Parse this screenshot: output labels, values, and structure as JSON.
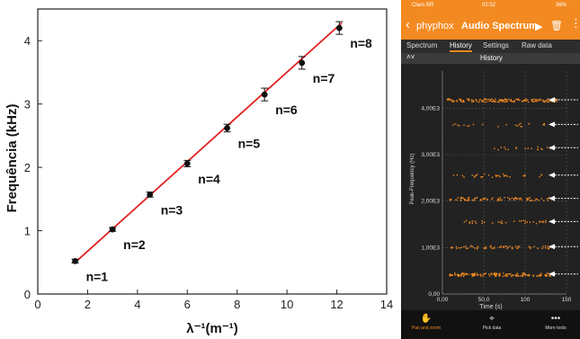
{
  "chart_data": [
    {
      "type": "scatter",
      "title": "",
      "xlabel": "λ⁻¹(m⁻¹)",
      "ylabel": "Frequência (kHz)",
      "xlim": [
        0,
        14
      ],
      "ylim": [
        0,
        4.5
      ],
      "xticks": [
        "0",
        "2",
        "4",
        "6",
        "8",
        "10",
        "12",
        "14"
      ],
      "yticks": [
        "0",
        "1",
        "2",
        "3",
        "4"
      ],
      "grid": false,
      "fit_line": {
        "x": [
          1.5,
          12.2
        ],
        "y": [
          0.5,
          4.28
        ],
        "color": "#e02020"
      },
      "points": [
        {
          "x": 1.5,
          "y": 0.52,
          "err": 0.03,
          "label": "n=1"
        },
        {
          "x": 3.0,
          "y": 1.02,
          "err": 0.03,
          "label": "n=2"
        },
        {
          "x": 4.5,
          "y": 1.57,
          "err": 0.04,
          "label": "n=3"
        },
        {
          "x": 6.0,
          "y": 2.06,
          "err": 0.05,
          "label": "n=4"
        },
        {
          "x": 7.6,
          "y": 2.62,
          "err": 0.06,
          "label": "n=5"
        },
        {
          "x": 9.1,
          "y": 3.15,
          "err": 0.1,
          "label": "n=6"
        },
        {
          "x": 10.6,
          "y": 3.65,
          "err": 0.1,
          "label": "n=7"
        },
        {
          "x": 12.1,
          "y": 4.2,
          "err": 0.1,
          "label": "n=8"
        }
      ]
    },
    {
      "type": "scatter",
      "title": "History",
      "xlabel": "Time (s)",
      "ylabel": "Peak-Frequency (Hz)",
      "xlim": [
        0,
        150
      ],
      "ylim": [
        0,
        4800
      ],
      "xticks": [
        "0,00",
        "50,0",
        "100",
        "150"
      ],
      "yticks": [
        "1,00E3",
        "2,00E3",
        "3,00E3",
        "4,00E3"
      ],
      "grid": true,
      "color": "#f38a21",
      "bands": [
        {
          "y": 430,
          "t_start": 8,
          "t_end": 130,
          "density": 1.0
        },
        {
          "y": 1020,
          "t_start": 8,
          "t_end": 130,
          "density": 0.5
        },
        {
          "y": 1560,
          "t_start": 25,
          "t_end": 125,
          "density": 0.3
        },
        {
          "y": 2060,
          "t_start": 8,
          "t_end": 130,
          "density": 0.6
        },
        {
          "y": 2560,
          "t_start": 10,
          "t_end": 120,
          "density": 0.25
        },
        {
          "y": 3150,
          "t_start": 60,
          "t_end": 130,
          "density": 0.15
        },
        {
          "y": 3650,
          "t_start": 10,
          "t_end": 130,
          "density": 0.15
        },
        {
          "y": 4180,
          "t_start": 5,
          "t_end": 138,
          "density": 0.9
        }
      ],
      "arrow_levels": [
        430,
        1020,
        1560,
        2060,
        2560,
        3150,
        3650,
        4180
      ]
    }
  ],
  "phone": {
    "status": {
      "carrier": "Claro BR",
      "time": "02:52",
      "battery": "36%"
    },
    "appbar": {
      "back_icon": "‹",
      "brand": "phyphox",
      "title": "Audio Spectrum",
      "play_icon": "▶",
      "trash_icon": "🗑",
      "more_icon": "⋮"
    },
    "tabs": [
      "Spectrum",
      "History",
      "Settings",
      "Raw data"
    ],
    "active_tab": "History",
    "panel_title": "History",
    "tools": [
      {
        "label": "Pan and zoom",
        "icon": "✋"
      },
      {
        "label": "Pick data",
        "icon": "⌖"
      },
      {
        "label": "More tools",
        "icon": "•••"
      }
    ]
  }
}
